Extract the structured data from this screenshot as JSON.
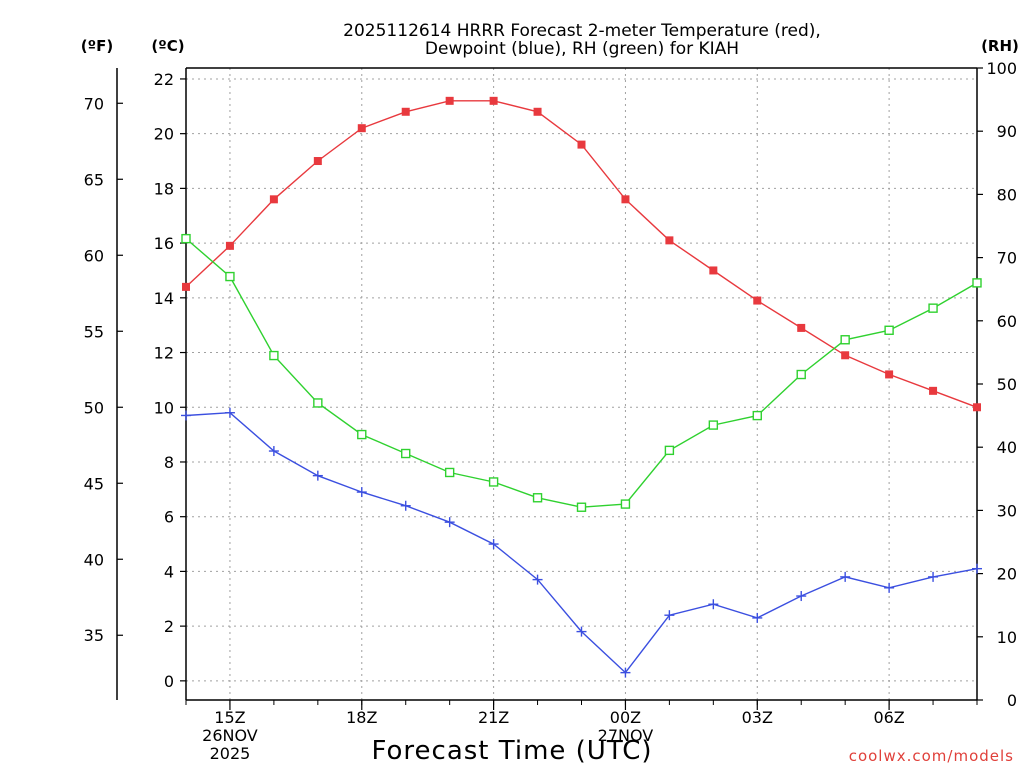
{
  "chart_data": {
    "type": "line",
    "title_line1": "2025112614 HRRR Forecast 2-meter Temperature (red),",
    "title_line2": "Dewpoint (blue), RH (green) for KIAH",
    "unit_f": "(ºF)",
    "unit_c": "(ºC)",
    "unit_rh": "(RH)",
    "xlabel": "Forecast Time (UTC)",
    "credit": "coolwx.com/models",
    "x_hours": [
      14,
      15,
      16,
      17,
      18,
      19,
      20,
      21,
      22,
      23,
      24,
      25,
      26,
      27,
      28,
      29,
      30,
      31,
      32
    ],
    "xlim": [
      14,
      32
    ],
    "x_ticks": [
      {
        "hour": 15,
        "lines": [
          "15Z",
          "26NOV",
          "2025"
        ]
      },
      {
        "hour": 18,
        "lines": [
          "18Z"
        ]
      },
      {
        "hour": 21,
        "lines": [
          "21Z"
        ]
      },
      {
        "hour": 24,
        "lines": [
          "00Z",
          "27NOV"
        ]
      },
      {
        "hour": 27,
        "lines": [
          "03Z"
        ]
      },
      {
        "hour": 30,
        "lines": [
          "06Z"
        ]
      }
    ],
    "y_c": {
      "lim": [
        -0.7,
        22.4
      ],
      "ticks": [
        0,
        2,
        4,
        6,
        8,
        10,
        12,
        14,
        16,
        18,
        20,
        22
      ]
    },
    "y_f": {
      "ticks": [
        35,
        40,
        45,
        50,
        55,
        60,
        65,
        70
      ]
    },
    "y_rh": {
      "lim": [
        0,
        100
      ],
      "ticks": [
        0,
        10,
        20,
        30,
        40,
        50,
        60,
        70,
        80,
        90,
        100
      ]
    },
    "series": [
      {
        "name": "Temperature",
        "color": "#e8393e",
        "marker": "filled-square",
        "axis": "c",
        "values": [
          14.4,
          15.9,
          17.6,
          19.0,
          20.2,
          20.8,
          21.2,
          21.2,
          20.8,
          19.6,
          17.6,
          16.1,
          15.0,
          13.9,
          12.9,
          11.9,
          11.2,
          10.6,
          10.0
        ]
      },
      {
        "name": "Dewpoint",
        "color": "#3b4fe0",
        "marker": "plus",
        "axis": "c",
        "values": [
          9.7,
          9.8,
          8.4,
          7.5,
          6.9,
          6.4,
          5.8,
          5.0,
          3.7,
          1.8,
          0.3,
          2.4,
          2.8,
          2.3,
          3.1,
          3.8,
          3.4,
          3.8,
          4.1
        ]
      },
      {
        "name": "RH",
        "color": "#2fd12f",
        "marker": "open-square",
        "axis": "rh",
        "values": [
          73.0,
          67.0,
          54.5,
          47.0,
          42.0,
          39.0,
          36.0,
          34.5,
          32.0,
          30.5,
          31.0,
          39.5,
          43.5,
          45.0,
          51.5,
          57.0,
          58.5,
          62.0,
          66.0
        ]
      }
    ]
  }
}
